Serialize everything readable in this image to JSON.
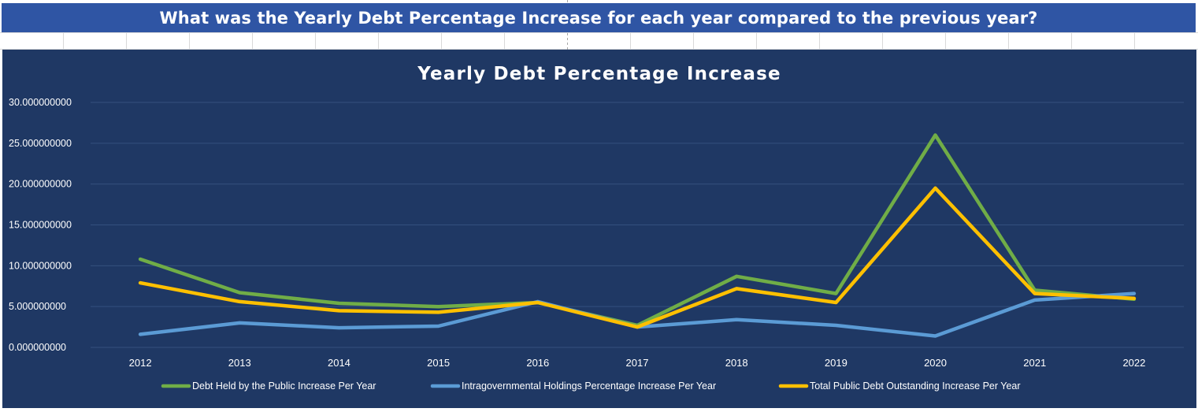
{
  "banner": {
    "question": "What was the Yearly Debt Percentage Increase for each year compared to the previous year?"
  },
  "colors": {
    "banner_bg": "#2f55a4",
    "chart_bg": "#1f3864",
    "grid": "#34507e",
    "text": "#ffffff",
    "series": [
      "#70ad47",
      "#5b9bd5",
      "#ffc000"
    ]
  },
  "chart_data": {
    "type": "line",
    "title": "Yearly Debt Percentage Increase",
    "xlabel": "",
    "ylabel": "",
    "categories": [
      "2012",
      "2013",
      "2014",
      "2015",
      "2016",
      "2017",
      "2018",
      "2019",
      "2020",
      "2021",
      "2022"
    ],
    "yticks": [
      "0.000000000",
      "5.000000000",
      "10.000000000",
      "15.000000000",
      "20.000000000",
      "25.000000000",
      "30.000000000"
    ],
    "ylim": [
      0,
      30
    ],
    "grid": true,
    "legend_position": "bottom",
    "series": [
      {
        "name": "Debt Held by the Public Increase Per Year",
        "color": "#70ad47",
        "values": [
          10.8,
          6.7,
          5.4,
          5.0,
          5.5,
          2.7,
          8.7,
          6.6,
          26.0,
          7.0,
          5.9
        ]
      },
      {
        "name": "Intragovernmental Holdings Percentage Increase Per Year",
        "color": "#5b9bd5",
        "values": [
          1.6,
          3.0,
          2.4,
          2.6,
          5.6,
          2.5,
          3.4,
          2.7,
          1.4,
          5.8,
          6.6
        ]
      },
      {
        "name": "Total Public Debt Outstanding Increase Per Year",
        "color": "#ffc000",
        "values": [
          7.9,
          5.6,
          4.5,
          4.3,
          5.5,
          2.5,
          7.2,
          5.5,
          19.5,
          6.6,
          6.0
        ]
      }
    ]
  }
}
